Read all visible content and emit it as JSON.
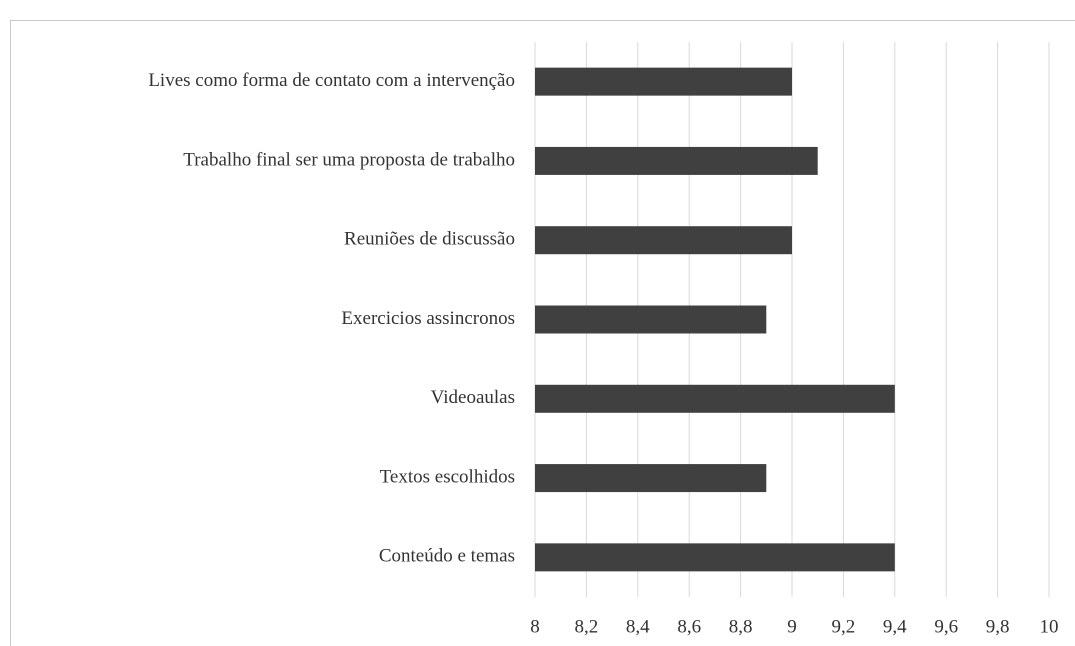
{
  "chart_data": {
    "type": "barh",
    "categories": [
      "Lives como forma de contato com a intervenção",
      "Trabalho final ser uma proposta de trabalho",
      "Reuniões de discussão",
      "Exercicios assincronos",
      "Videoaulas",
      "Textos escolhidos",
      "Conteúdo e temas"
    ],
    "values": [
      9.0,
      9.1,
      9.0,
      8.9,
      9.4,
      8.9,
      9.4
    ],
    "color": "#404040",
    "xlim": [
      8,
      10
    ],
    "xticks": [
      8,
      {
        "value": 8.2,
        "label": "8,2"
      },
      {
        "value": 8.4,
        "label": "8,4"
      },
      {
        "value": 8.6,
        "label": "8,6"
      },
      {
        "value": 8.8,
        "label": "8,8"
      },
      9,
      {
        "value": 9.2,
        "label": "9,2"
      },
      {
        "value": 9.4,
        "label": "9,4"
      },
      {
        "value": 9.6,
        "label": "9,6"
      },
      {
        "value": 9.8,
        "label": "9,8"
      },
      10
    ],
    "grid": true
  }
}
